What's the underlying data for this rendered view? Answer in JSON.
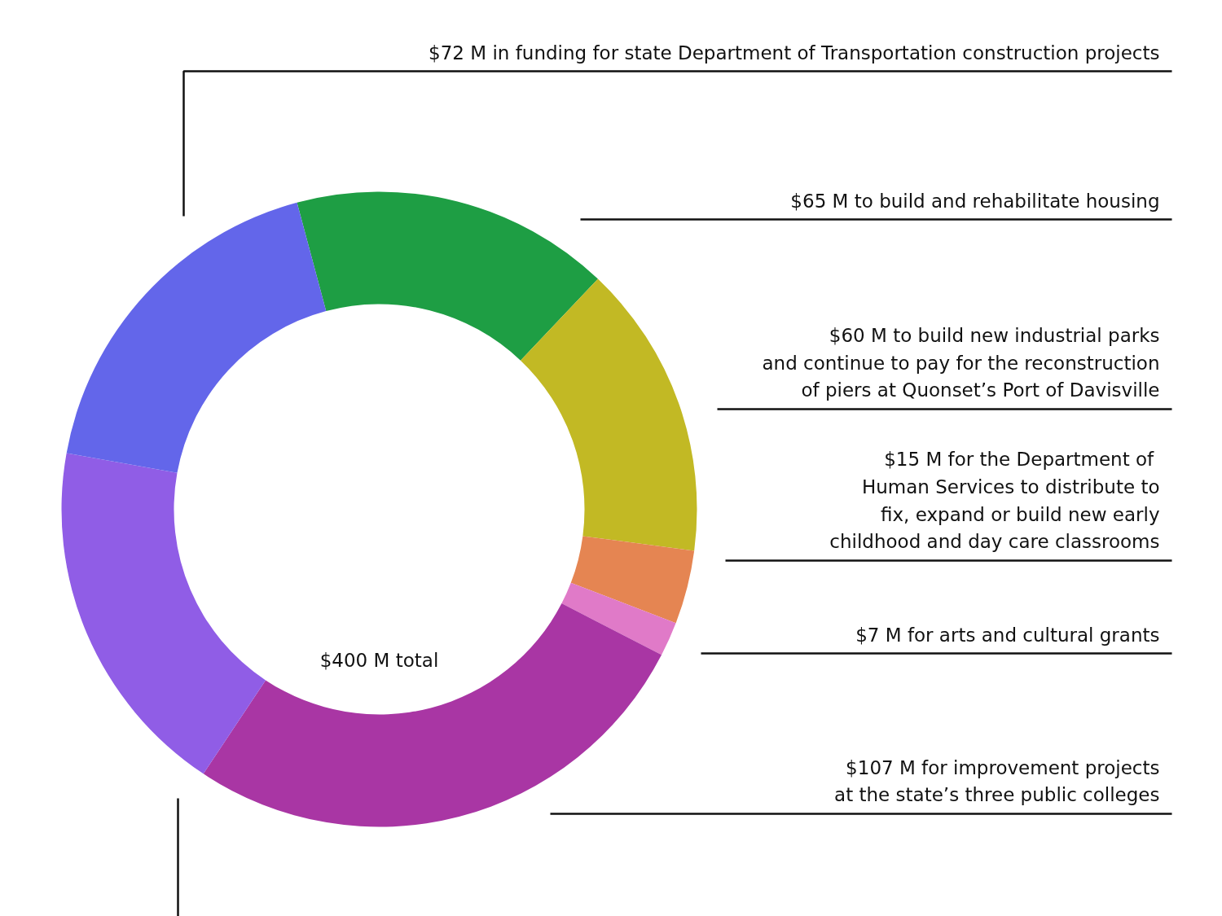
{
  "chart_data": {
    "type": "donut",
    "categories": [
      "$65 M to build and rehabilitate housing",
      "$60 M to build new industrial parks\nand continue to pay for the reconstruction\nof piers at Quonset’s Port of Davisville",
      "$15 M for the Department of \nHuman Services to distribute to\nfix, expand or build new early\nchildhood and day care classrooms",
      "$7 M for arts and cultural grants",
      "$107 M for improvement projects\nat the state’s three public colleges",
      null,
      "$72 M in funding for state Department of Transportation construction projects"
    ],
    "values": [
      65,
      60,
      15,
      7,
      107,
      74,
      72
    ],
    "colors": [
      "#1e9e44",
      "#c2b924",
      "#e58552",
      "#e07ac8",
      "#a936a4",
      "#905de6",
      "#6366ea"
    ],
    "annotations": [
      "$400 M total"
    ]
  }
}
